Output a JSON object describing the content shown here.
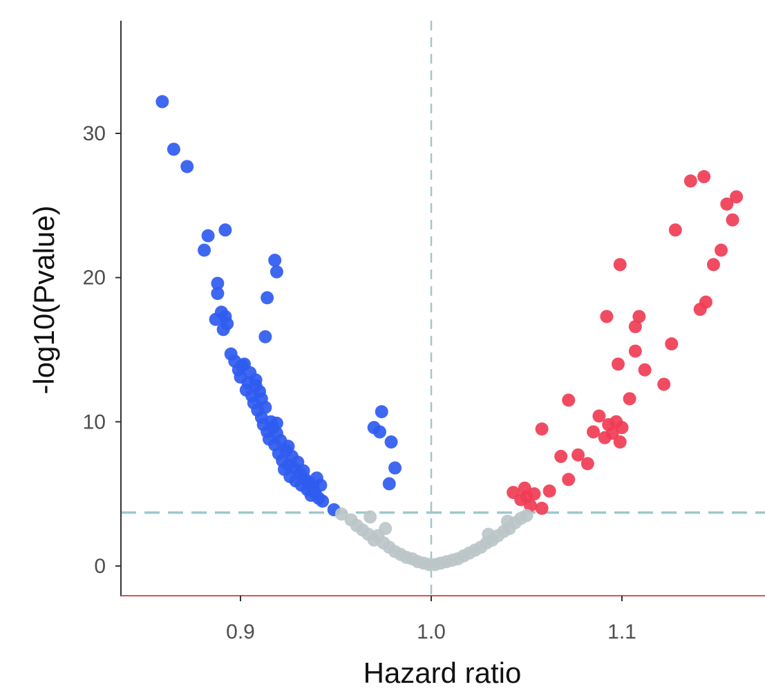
{
  "chart_data": {
    "type": "scatter",
    "title": "",
    "xlabel": "Hazard ratio",
    "ylabel": "-log10(Pvalue)",
    "xlim": [
      0.84,
      1.18
    ],
    "ylim": [
      -2,
      37
    ],
    "x_ticks": [
      0.9,
      1.0,
      1.1
    ],
    "x_tick_labels": [
      "0.9",
      "1.0",
      "1.1"
    ],
    "y_ticks": [
      0,
      10,
      20,
      30
    ],
    "y_tick_labels": [
      "0",
      "10",
      "20",
      "30"
    ],
    "grid": false,
    "legend": "none",
    "reference_lines": {
      "vertical_x": 1.0,
      "horizontal_y": 3.7
    },
    "colors": {
      "down": "#2f5bf0",
      "up": "#f03c55",
      "not_significant": "#bcc6c8",
      "reference_line": "#9fc8cc",
      "x_axis": "#d9534f",
      "y_axis": "#333333",
      "tick_text": "#4d4d4d"
    },
    "series": [
      {
        "color_key": "down",
        "points": [
          [
            0.859,
            32.2
          ],
          [
            0.865,
            28.9
          ],
          [
            0.872,
            27.7
          ],
          [
            0.883,
            22.9
          ],
          [
            0.881,
            21.9
          ],
          [
            0.892,
            23.3
          ],
          [
            0.888,
            19.6
          ],
          [
            0.888,
            18.9
          ],
          [
            0.887,
            17.1
          ],
          [
            0.89,
            17.6
          ],
          [
            0.892,
            17.3
          ],
          [
            0.893,
            16.8
          ],
          [
            0.891,
            16.4
          ],
          [
            0.918,
            21.2
          ],
          [
            0.919,
            20.4
          ],
          [
            0.914,
            18.6
          ],
          [
            0.913,
            15.9
          ],
          [
            0.895,
            14.7
          ],
          [
            0.897,
            14.2
          ],
          [
            0.899,
            13.6
          ],
          [
            0.9,
            13.1
          ],
          [
            0.902,
            14.0
          ],
          [
            0.904,
            12.7
          ],
          [
            0.903,
            12.2
          ],
          [
            0.905,
            13.4
          ],
          [
            0.906,
            11.8
          ],
          [
            0.908,
            12.9
          ],
          [
            0.907,
            11.3
          ],
          [
            0.909,
            10.8
          ],
          [
            0.91,
            12.1
          ],
          [
            0.911,
            10.3
          ],
          [
            0.912,
            9.8
          ],
          [
            0.913,
            11.0
          ],
          [
            0.914,
            9.3
          ],
          [
            0.915,
            8.8
          ],
          [
            0.916,
            10.0
          ],
          [
            0.917,
            9.6
          ],
          [
            0.918,
            8.4
          ],
          [
            0.919,
            9.2
          ],
          [
            0.92,
            7.8
          ],
          [
            0.921,
            8.7
          ],
          [
            0.922,
            7.3
          ],
          [
            0.923,
            6.7
          ],
          [
            0.924,
            8.0
          ],
          [
            0.925,
            7.0
          ],
          [
            0.926,
            6.2
          ],
          [
            0.927,
            7.6
          ],
          [
            0.928,
            6.8
          ],
          [
            0.929,
            5.9
          ],
          [
            0.93,
            7.2
          ],
          [
            0.931,
            6.4
          ],
          [
            0.932,
            5.6
          ],
          [
            0.933,
            6.6
          ],
          [
            0.934,
            6.0
          ],
          [
            0.935,
            5.3
          ],
          [
            0.936,
            5.8
          ],
          [
            0.937,
            4.9
          ],
          [
            0.938,
            5.5
          ],
          [
            0.939,
            5.1
          ],
          [
            0.94,
            6.1
          ],
          [
            0.941,
            4.7
          ],
          [
            0.942,
            5.6
          ],
          [
            0.943,
            4.5
          ],
          [
            0.949,
            3.9
          ],
          [
            0.925,
            8.3
          ],
          [
            0.919,
            9.9
          ],
          [
            0.911,
            11.6
          ],
          [
            0.901,
            13.9
          ],
          [
            0.908,
            12.5
          ],
          [
            0.974,
            10.7
          ],
          [
            0.97,
            9.6
          ],
          [
            0.973,
            9.3
          ],
          [
            0.979,
            8.6
          ],
          [
            0.981,
            6.8
          ],
          [
            0.978,
            5.7
          ]
        ]
      },
      {
        "color_key": "up",
        "points": [
          [
            1.043,
            5.1
          ],
          [
            1.049,
            5.4
          ],
          [
            1.05,
            4.8
          ],
          [
            1.047,
            4.6
          ],
          [
            1.052,
            4.2
          ],
          [
            1.054,
            5.0
          ],
          [
            1.058,
            4.0
          ],
          [
            1.062,
            5.2
          ],
          [
            1.058,
            9.5
          ],
          [
            1.068,
            7.6
          ],
          [
            1.072,
            11.5
          ],
          [
            1.072,
            6.0
          ],
          [
            1.077,
            7.7
          ],
          [
            1.082,
            7.1
          ],
          [
            1.085,
            9.3
          ],
          [
            1.088,
            10.4
          ],
          [
            1.091,
            8.9
          ],
          [
            1.093,
            9.8
          ],
          [
            1.095,
            9.2
          ],
          [
            1.097,
            10.0
          ],
          [
            1.099,
            8.6
          ],
          [
            1.1,
            9.6
          ],
          [
            1.092,
            17.3
          ],
          [
            1.098,
            14.0
          ],
          [
            1.099,
            20.9
          ],
          [
            1.104,
            11.6
          ],
          [
            1.107,
            14.9
          ],
          [
            1.107,
            16.6
          ],
          [
            1.109,
            17.3
          ],
          [
            1.112,
            13.6
          ],
          [
            1.122,
            12.6
          ],
          [
            1.126,
            15.4
          ],
          [
            1.128,
            23.3
          ],
          [
            1.136,
            26.7
          ],
          [
            1.141,
            17.8
          ],
          [
            1.144,
            18.3
          ],
          [
            1.143,
            27.0
          ],
          [
            1.148,
            20.9
          ],
          [
            1.152,
            21.9
          ],
          [
            1.155,
            25.1
          ],
          [
            1.158,
            24.0
          ],
          [
            1.16,
            25.6
          ]
        ]
      },
      {
        "color_key": "not_significant",
        "points": [
          [
            0.953,
            3.6
          ],
          [
            0.958,
            3.2
          ],
          [
            0.961,
            2.8
          ],
          [
            0.964,
            2.5
          ],
          [
            0.967,
            2.2
          ],
          [
            0.97,
            1.8
          ],
          [
            0.972,
            2.1
          ],
          [
            0.975,
            1.6
          ],
          [
            0.978,
            1.3
          ],
          [
            0.981,
            1.0
          ],
          [
            0.984,
            0.8
          ],
          [
            0.987,
            0.6
          ],
          [
            0.99,
            0.5
          ],
          [
            0.993,
            0.3
          ],
          [
            0.996,
            0.2
          ],
          [
            0.999,
            0.1
          ],
          [
            1.002,
            0.1
          ],
          [
            1.005,
            0.2
          ],
          [
            1.008,
            0.3
          ],
          [
            1.011,
            0.4
          ],
          [
            1.014,
            0.5
          ],
          [
            1.017,
            0.7
          ],
          [
            1.02,
            0.9
          ],
          [
            1.023,
            1.1
          ],
          [
            1.026,
            1.3
          ],
          [
            1.029,
            1.6
          ],
          [
            1.032,
            1.8
          ],
          [
            1.035,
            2.1
          ],
          [
            1.038,
            2.4
          ],
          [
            1.041,
            2.6
          ],
          [
            1.044,
            3.0
          ],
          [
            1.047,
            3.3
          ],
          [
            1.05,
            3.5
          ],
          [
            0.968,
            3.4
          ],
          [
            0.976,
            2.6
          ],
          [
            1.03,
            2.2
          ],
          [
            1.04,
            3.1
          ]
        ]
      }
    ]
  }
}
